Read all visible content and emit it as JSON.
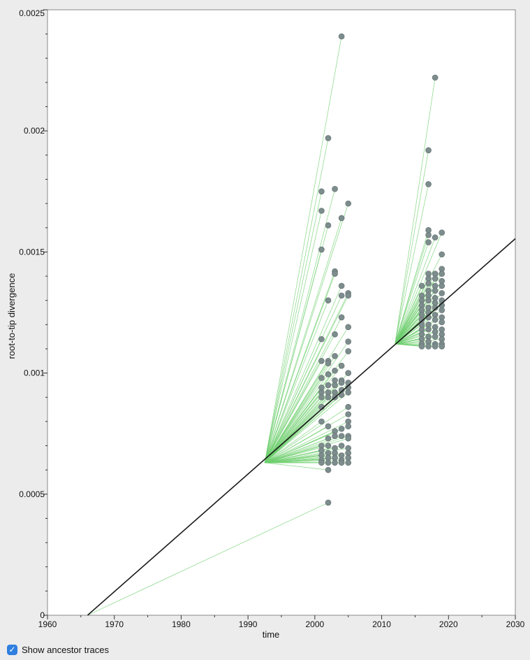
{
  "chart_data": {
    "type": "scatter",
    "title": "",
    "xlabel": "time",
    "ylabel": "root-to-tip divergence",
    "xlim": [
      1960,
      2030
    ],
    "ylim": [
      0,
      0.0025
    ],
    "x_ticks": [
      "1960",
      "1970",
      "1980",
      "1990",
      "2000",
      "2010",
      "2020",
      "2030"
    ],
    "y_ticks": [
      "0",
      "0.0005",
      "0.001",
      "0.0015",
      "0.002",
      "0.0025"
    ],
    "regression_line": {
      "x": [
        1966,
        2030
      ],
      "y": [
        0,
        0.001555
      ]
    },
    "ancestors": [
      {
        "x": 1992.5,
        "y": 0.00063
      },
      {
        "x": 2012.0,
        "y": 0.00112
      },
      {
        "x": 1966.0,
        "y": 0.0
      }
    ],
    "series": [
      {
        "ancestor": 0,
        "x": [
          2004,
          2002,
          2003,
          2001,
          2001,
          2002,
          2004,
          2005,
          2001,
          2003,
          2003,
          2005,
          2004,
          2005,
          2002,
          2004,
          2005,
          2004,
          2005,
          2003,
          2001,
          2005,
          2003,
          2002,
          2001,
          2002,
          2003,
          2004,
          2005,
          2002,
          2001,
          2003,
          2004,
          2005,
          2001,
          2002,
          2003,
          2004,
          2005,
          2001,
          2002,
          2003,
          2004,
          2005,
          2001,
          2002,
          2003,
          2004,
          2005,
          2005,
          2005,
          2005,
          2001,
          2002,
          2004,
          2003,
          2005,
          2001,
          2002,
          2003,
          2004,
          2005,
          2001,
          2002,
          2003,
          2004,
          2005,
          2001,
          2002,
          2003,
          2004,
          2005,
          2001,
          2002,
          2003,
          2004,
          2005,
          2001,
          2002,
          2003,
          2004,
          2005,
          2001,
          2002
        ],
        "y": [
          0.00239,
          0.00197,
          0.00176,
          0.00175,
          0.00167,
          0.00161,
          0.00164,
          0.0017,
          0.00151,
          0.00142,
          0.00141,
          0.00133,
          0.00136,
          0.00132,
          0.0013,
          0.00132,
          0.00119,
          0.00123,
          0.00113,
          0.00116,
          0.00114,
          0.00109,
          0.00107,
          0.00105,
          0.00105,
          0.00104,
          0.00101,
          0.00103,
          0.001,
          0.000995,
          0.00098,
          0.00097,
          0.00097,
          0.00096,
          0.00094,
          0.00095,
          0.00095,
          0.00096,
          0.00094,
          0.00092,
          0.00092,
          0.00092,
          0.00093,
          0.00092,
          0.0009,
          0.0009,
          0.0009,
          0.00091,
          0.00086,
          0.00083,
          0.0008,
          0.00078,
          0.0008,
          0.00078,
          0.00077,
          0.00076,
          0.00074,
          0.0007,
          0.00073,
          0.00074,
          0.00074,
          0.00073,
          0.00068,
          0.0007,
          0.00069,
          0.0007,
          0.00069,
          0.00066,
          0.00067,
          0.00067,
          0.00066,
          0.00067,
          0.00064,
          0.00065,
          0.00065,
          0.00064,
          0.00065,
          0.00063,
          0.00063,
          0.00063,
          0.00063,
          0.00063,
          0.00086,
          0.0006
        ]
      },
      {
        "ancestor": 1,
        "x": [
          2018,
          2017,
          2017,
          2017,
          2017,
          2017,
          2019,
          2018,
          2019,
          2019,
          2016,
          2016,
          2017,
          2018,
          2019,
          2016,
          2017,
          2018,
          2019,
          2016,
          2017,
          2018,
          2019,
          2016,
          2017,
          2018,
          2019,
          2016,
          2017,
          2018,
          2019,
          2016,
          2017,
          2018,
          2019,
          2016,
          2017,
          2018,
          2019,
          2016,
          2017,
          2018,
          2019,
          2016,
          2017,
          2018,
          2019,
          2016,
          2017,
          2018,
          2019,
          2016,
          2017,
          2018,
          2019,
          2016,
          2017,
          2018,
          2019,
          2017,
          2018,
          2019,
          2017,
          2018,
          2019
        ],
        "y": [
          0.00222,
          0.00192,
          0.00178,
          0.00159,
          0.00157,
          0.00154,
          0.00158,
          0.00156,
          0.00149,
          0.00143,
          0.00136,
          0.00132,
          0.00141,
          0.00141,
          0.00141,
          0.0013,
          0.00139,
          0.00139,
          0.00138,
          0.00128,
          0.00137,
          0.00136,
          0.00136,
          0.00126,
          0.00134,
          0.00134,
          0.00133,
          0.00124,
          0.00132,
          0.00131,
          0.0013,
          0.00122,
          0.0013,
          0.00129,
          0.00128,
          0.0012,
          0.00127,
          0.00127,
          0.00126,
          0.00118,
          0.00125,
          0.00124,
          0.00123,
          0.00116,
          0.00123,
          0.00122,
          0.00121,
          0.00114,
          0.0012,
          0.00119,
          0.00118,
          0.00112,
          0.00118,
          0.00117,
          0.00116,
          0.00111,
          0.00115,
          0.00115,
          0.00114,
          0.00113,
          0.00112,
          0.00112,
          0.00111,
          0.00111,
          0.00111
        ]
      },
      {
        "ancestor": 2,
        "x": [
          2002
        ],
        "y": [
          0.000465
        ]
      }
    ],
    "grid": false,
    "colors": {
      "points": "#7d8c8c",
      "traces": "#6fcf6f",
      "line": "#1a1a1a"
    }
  },
  "footer": {
    "checkbox_checked": true,
    "checkbox_label": "Show ancestor traces"
  }
}
